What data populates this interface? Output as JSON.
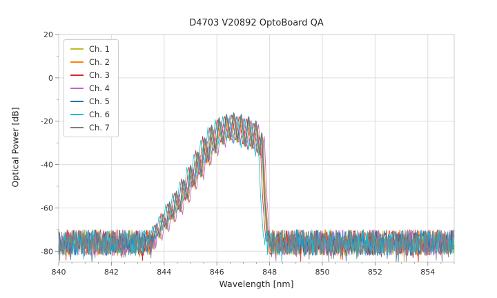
{
  "chart_data": {
    "type": "line",
    "title": "D4703 V20892 OptoBoard QA",
    "xlabel": "Wavelength [nm]",
    "ylabel": "Optical Power [dB]",
    "xlim": [
      840,
      855
    ],
    "ylim": [
      -85,
      20
    ],
    "xticks": [
      840,
      842,
      844,
      846,
      848,
      850,
      852,
      854
    ],
    "yticks": [
      20,
      0,
      -20,
      -40,
      -60,
      -80
    ],
    "x_minor_step": 0.5,
    "y_minor_step": 10,
    "grid": true,
    "grid_color": "#dddddd",
    "frame_color": "#cccccc",
    "tick_color": "#888888",
    "legend_position": "upper left",
    "sample_step_nm": 0.02,
    "noise_floor": {
      "mean": -76,
      "spread": 6,
      "deep_spike_chance": 0.07,
      "deep_spike_extra": -5
    },
    "peak_region_nm": [
      843.6,
      848.1
    ],
    "peak_max_db": -17,
    "envelope_base_points": [
      [
        843.55,
        -80
      ],
      [
        843.7,
        -68
      ],
      [
        843.82,
        -74
      ],
      [
        843.95,
        -63
      ],
      [
        844.08,
        -70
      ],
      [
        844.2,
        -58
      ],
      [
        844.33,
        -66
      ],
      [
        844.46,
        -53
      ],
      [
        844.6,
        -62
      ],
      [
        844.73,
        -47
      ],
      [
        844.87,
        -57
      ],
      [
        845.0,
        -41
      ],
      [
        845.13,
        -51
      ],
      [
        845.27,
        -34
      ],
      [
        845.4,
        -46
      ],
      [
        845.53,
        -27.5
      ],
      [
        845.67,
        -40
      ],
      [
        845.8,
        -22.5
      ],
      [
        845.94,
        -35
      ],
      [
        846.08,
        -19
      ],
      [
        846.22,
        -31
      ],
      [
        846.36,
        -17.5
      ],
      [
        846.5,
        -29
      ],
      [
        846.64,
        -16.8
      ],
      [
        846.78,
        -30
      ],
      [
        846.92,
        -17.5
      ],
      [
        847.06,
        -32
      ],
      [
        847.2,
        -18.5
      ],
      [
        847.34,
        -33
      ],
      [
        847.48,
        -20.5
      ],
      [
        847.6,
        -36
      ],
      [
        847.7,
        -26
      ],
      [
        847.8,
        -55
      ],
      [
        847.9,
        -72
      ],
      [
        848.0,
        -80
      ]
    ],
    "series": [
      {
        "name": "Ch. 1",
        "color": "#bcbd22",
        "x_offset": -0.02,
        "y_offset": 0.0,
        "seed": 101
      },
      {
        "name": "Ch. 2",
        "color": "#ff7f0e",
        "x_offset": 0.05,
        "y_offset": -0.5,
        "seed": 202
      },
      {
        "name": "Ch. 3",
        "color": "#d62728",
        "x_offset": -0.07,
        "y_offset": 0.5,
        "seed": 303
      },
      {
        "name": "Ch. 4",
        "color": "#ba68c8",
        "x_offset": 0.1,
        "y_offset": -1.0,
        "seed": 404
      },
      {
        "name": "Ch. 5",
        "color": "#1f77b4",
        "x_offset": 0.0,
        "y_offset": 0.8,
        "seed": 505
      },
      {
        "name": "Ch. 6",
        "color": "#17becf",
        "x_offset": -0.14,
        "y_offset": -0.3,
        "seed": 606
      },
      {
        "name": "Ch. 7",
        "color": "#7f7f7f",
        "x_offset": 0.02,
        "y_offset": 0.3,
        "seed": 707
      }
    ]
  }
}
